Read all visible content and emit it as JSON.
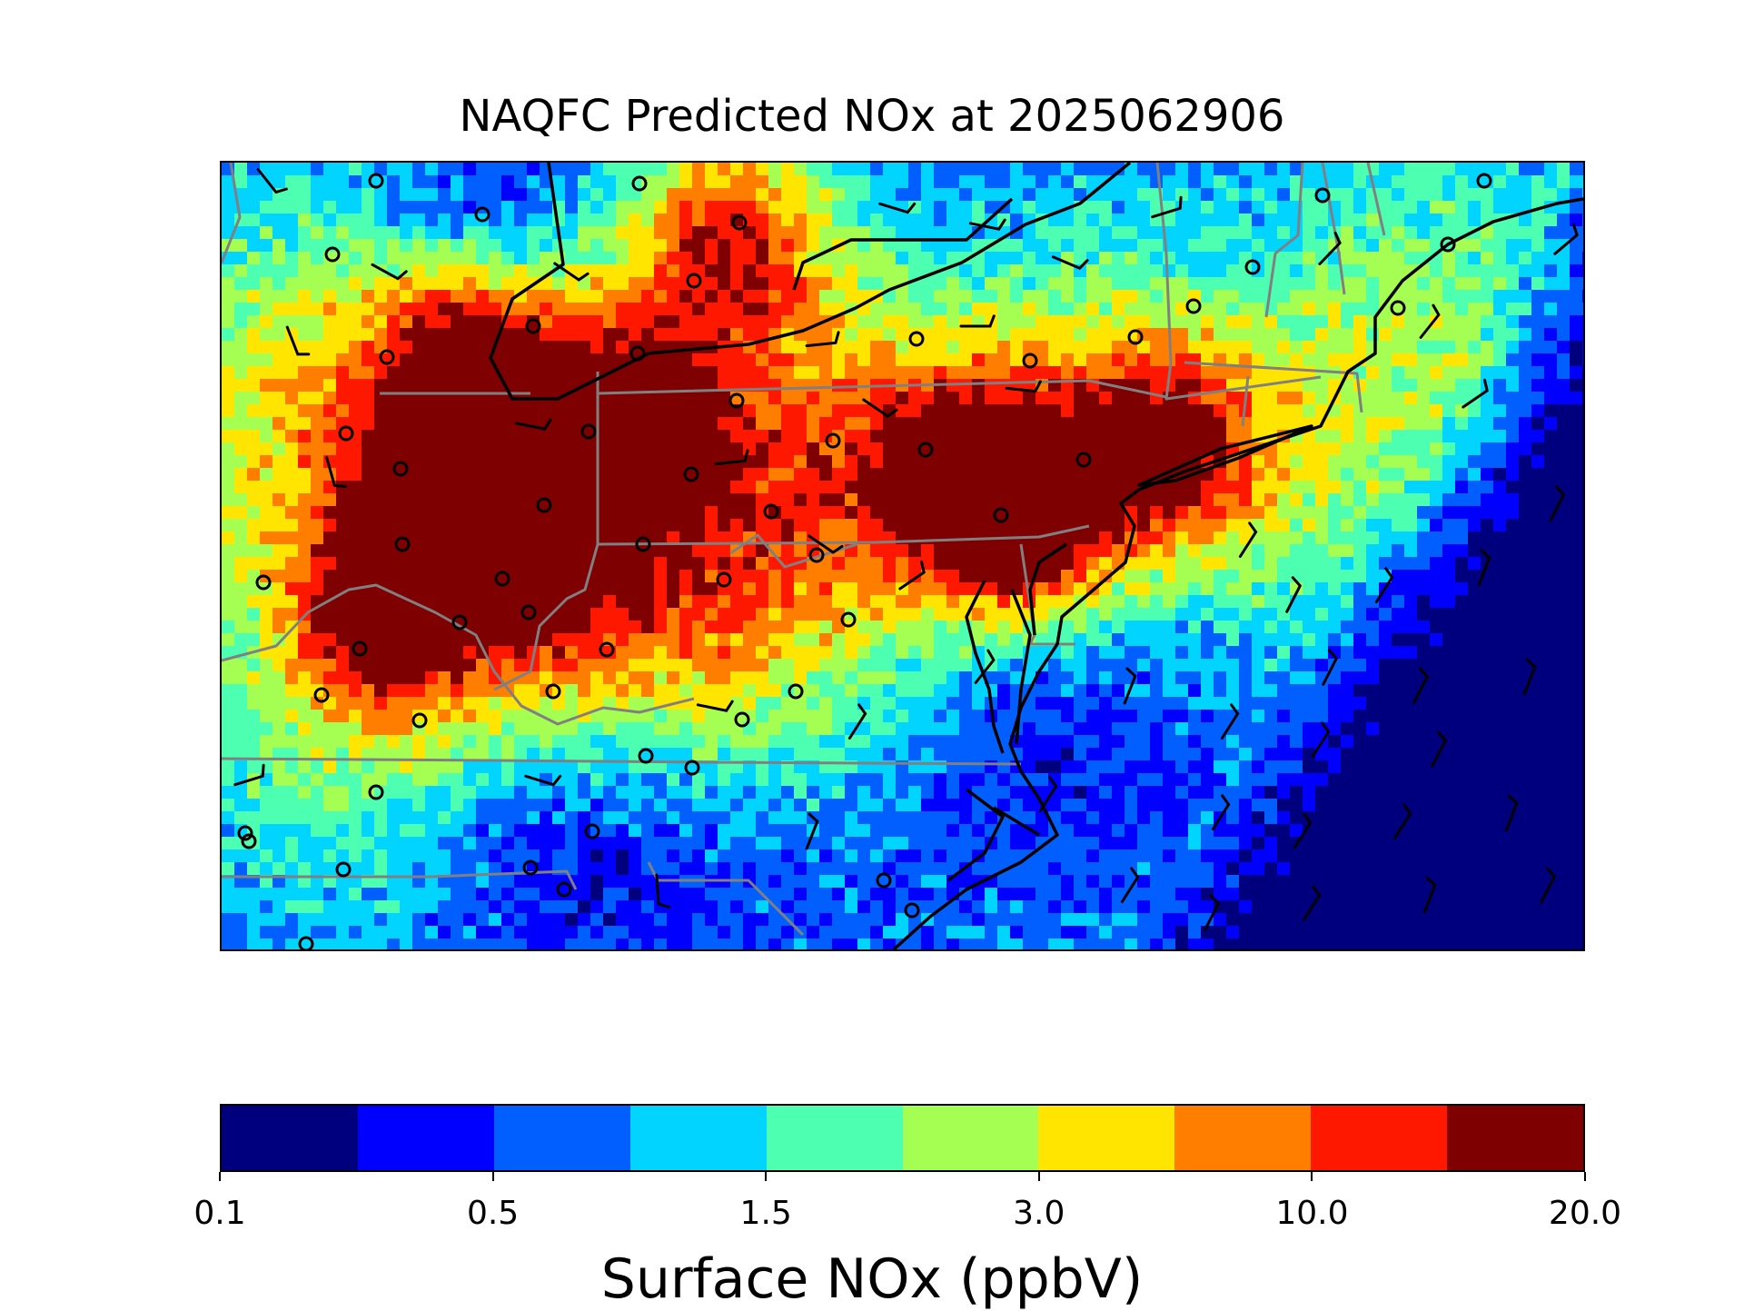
{
  "title": "NAQFC Predicted NOx at 2025062906",
  "colorbar": {
    "label": "Surface NOx (ppbV)",
    "tick_labels": [
      "0.1",
      "0.5",
      "1.5",
      "3.0",
      "10.0",
      "20.0"
    ],
    "colors": [
      "#00007f",
      "#0000ff",
      "#005ffe",
      "#00d4ff",
      "#4dffb0",
      "#a4ff52",
      "#ffe500",
      "#ff7e00",
      "#ff1800",
      "#7f0000"
    ]
  },
  "map": {
    "field": "surface NOx concentration grid",
    "overlays": [
      "coastline",
      "state-borders",
      "monitoring-sites",
      "wind-barbs"
    ],
    "coastline_color": "#000000",
    "border_color": "#808080"
  }
}
